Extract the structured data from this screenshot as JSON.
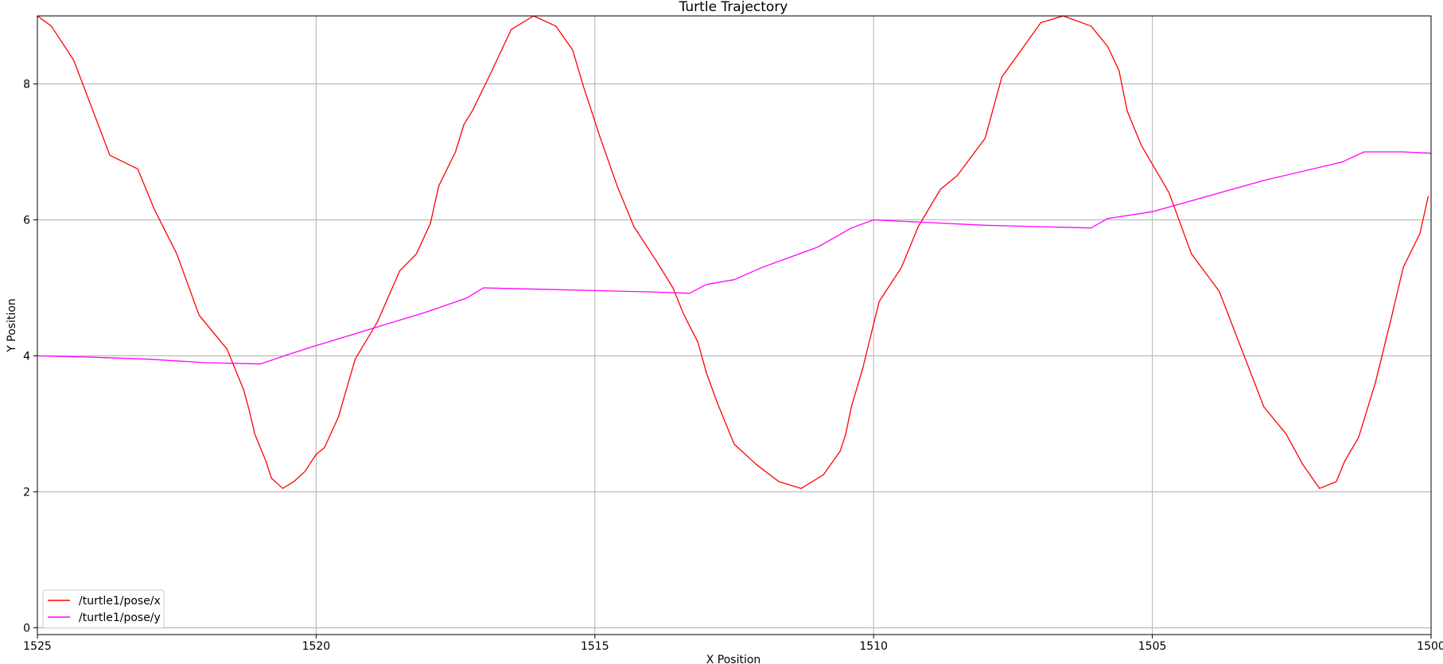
{
  "chart_data": {
    "type": "line",
    "title": "Turtle Trajectory",
    "xlabel": "X Position",
    "ylabel": "Y Position",
    "xlim": [
      1525,
      1500
    ],
    "ylim": [
      -0.1,
      9.0
    ],
    "x_ticks": [
      1525,
      1520,
      1515,
      1510,
      1505,
      1500
    ],
    "y_ticks": [
      0,
      2,
      4,
      6,
      8
    ],
    "grid": true,
    "legend_position": "lower-left",
    "series": [
      {
        "name": "/turtle1/pose/x",
        "color": "#ff0000",
        "x": [
          1525,
          1524.75,
          1524.35,
          1523.7,
          1523.2,
          1522.9,
          1522.5,
          1522.1,
          1521.6,
          1521.3,
          1521.2,
          1521.1,
          1520.9,
          1520.8,
          1520.6,
          1520.4,
          1520.2,
          1520.0,
          1519.85,
          1519.6,
          1519.3,
          1518.9,
          1518.5,
          1518.2,
          1517.95,
          1517.8,
          1517.5,
          1517.35,
          1517.2,
          1516.9,
          1516.5,
          1516.1,
          1515.7,
          1515.4,
          1515.2,
          1514.9,
          1514.6,
          1514.3,
          1513.9,
          1513.6,
          1513.4,
          1513.15,
          1513.0,
          1512.8,
          1512.5,
          1512.1,
          1511.7,
          1511.3,
          1510.9,
          1510.6,
          1510.5,
          1510.4,
          1510.2,
          1509.9,
          1509.5,
          1509.2,
          1508.8,
          1508.5,
          1508.0,
          1507.7,
          1507.35,
          1507.0,
          1506.6,
          1506.1,
          1505.8,
          1505.6,
          1505.45,
          1505.2,
          1504.7,
          1504.3,
          1503.8,
          1503.4,
          1503.0,
          1502.6,
          1502.3,
          1502.0,
          1501.7,
          1501.55,
          1501.3,
          1501.0,
          1500.7,
          1500.5,
          1500.2,
          1500.05
        ],
        "y": [
          9.0,
          8.85,
          8.35,
          6.95,
          6.75,
          6.15,
          5.5,
          4.6,
          4.1,
          3.5,
          3.2,
          2.85,
          2.45,
          2.2,
          2.05,
          2.15,
          2.3,
          2.55,
          2.65,
          3.1,
          3.95,
          4.5,
          5.25,
          5.5,
          5.95,
          6.5,
          7.0,
          7.4,
          7.6,
          8.1,
          8.8,
          9.0,
          8.85,
          8.5,
          7.95,
          7.2,
          6.5,
          5.9,
          5.4,
          5.0,
          4.6,
          4.2,
          3.75,
          3.3,
          2.7,
          2.4,
          2.15,
          2.05,
          2.25,
          2.6,
          2.85,
          3.25,
          3.8,
          4.8,
          5.3,
          5.9,
          6.45,
          6.65,
          7.2,
          8.1,
          8.5,
          8.9,
          9.0,
          8.85,
          8.55,
          8.2,
          7.6,
          7.1,
          6.4,
          5.5,
          4.95,
          4.1,
          3.25,
          2.85,
          2.4,
          2.05,
          2.15,
          2.45,
          2.8,
          3.6,
          4.6,
          5.3,
          5.8,
          6.35
        ],
        "y_full": [
          9.0,
          8.85,
          8.35,
          6.95,
          6.75,
          6.15,
          5.5,
          4.6,
          4.1,
          3.5,
          3.2,
          2.85,
          2.45,
          2.2,
          2.05,
          2.15,
          2.3,
          2.55,
          2.65,
          3.1,
          3.95,
          4.5,
          5.25,
          5.5,
          5.95,
          6.5,
          7.0,
          7.4,
          7.6,
          8.1,
          8.8,
          9.0,
          8.85,
          8.5,
          7.95,
          7.2,
          6.5,
          5.9,
          5.4,
          5.0,
          4.6,
          4.2,
          3.75,
          3.3,
          2.7,
          2.4,
          2.15,
          2.05,
          2.25,
          2.6,
          2.85,
          3.25,
          3.8,
          4.8,
          5.3,
          5.9,
          6.45,
          6.65,
          7.2,
          8.1,
          8.5,
          8.9,
          9.0,
          8.85,
          8.55,
          8.2,
          7.6,
          7.1,
          6.4,
          5.5,
          4.95,
          4.1,
          3.25,
          2.85,
          2.4,
          2.05,
          2.15,
          2.45,
          2.8,
          3.6,
          4.6,
          5.3,
          5.8,
          6.35
        ]
      },
      {
        "name": "/turtle1/pose/y",
        "color": "#ff00ff",
        "x": [
          1525,
          1524.0,
          1523.0,
          1522.0,
          1521.0,
          1520.5,
          1520.0,
          1519.0,
          1518.0,
          1517.3,
          1517.0,
          1516.0,
          1515.0,
          1514.0,
          1513.3,
          1513.0,
          1512.5,
          1512.0,
          1511.0,
          1510.4,
          1510.0,
          1509.0,
          1508.0,
          1506.1,
          1505.8,
          1505.0,
          1504.0,
          1503.0,
          1501.6,
          1501.2,
          1500.5,
          1500.0
        ],
        "y": [
          4.0,
          3.98,
          3.95,
          3.9,
          3.88,
          4.02,
          4.15,
          4.4,
          4.65,
          4.85,
          5.0,
          4.98,
          4.96,
          4.94,
          4.92,
          5.05,
          5.12,
          5.3,
          5.6,
          5.88,
          6.0,
          5.96,
          5.92,
          5.88,
          6.02,
          6.12,
          6.35,
          6.58,
          6.85,
          7.0,
          7.0,
          6.98
        ]
      }
    ]
  }
}
